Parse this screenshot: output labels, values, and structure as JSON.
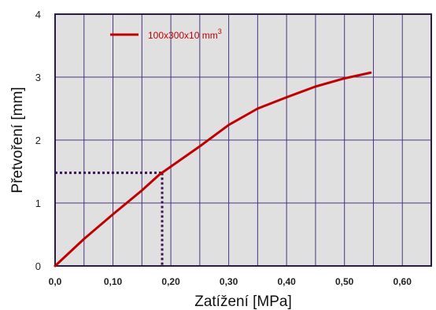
{
  "chart_data": {
    "type": "line",
    "xlabel": "Zatížení [MPa]",
    "ylabel": "Přetvoření [mm]",
    "xlim": [
      0,
      0.65
    ],
    "ylim": [
      0,
      4
    ],
    "x_ticks": [
      0,
      0.1,
      0.2,
      0.3,
      0.4,
      0.5,
      0.6
    ],
    "x_tick_labels": [
      "0,0",
      "0,10",
      "0,20",
      "0,30",
      "0,40",
      "0,50",
      "0,60"
    ],
    "y_ticks": [
      0,
      1,
      2,
      3,
      4
    ],
    "y_tick_labels": [
      "0",
      "1",
      "2",
      "3",
      "4"
    ],
    "grid": true,
    "legend_position": "top-left",
    "series": [
      {
        "name": "100x300x10 mm",
        "name_superscript": "3",
        "color": "#c00000",
        "x": [
          0.0,
          0.05,
          0.1,
          0.15,
          0.18,
          0.25,
          0.3,
          0.35,
          0.4,
          0.45,
          0.5,
          0.545
        ],
        "y": [
          0.0,
          0.43,
          0.82,
          1.2,
          1.45,
          1.9,
          2.24,
          2.5,
          2.68,
          2.85,
          2.98,
          3.07
        ]
      }
    ],
    "annotation": {
      "x": 0.185,
      "y": 1.48,
      "style": "dotted",
      "color": "#3a1450"
    }
  },
  "colors": {
    "plot_background": "#e0e0e0",
    "grid": "#4a3480",
    "frame": "#2c1a4a",
    "series": "#c00000",
    "guide": "#3a1450"
  }
}
